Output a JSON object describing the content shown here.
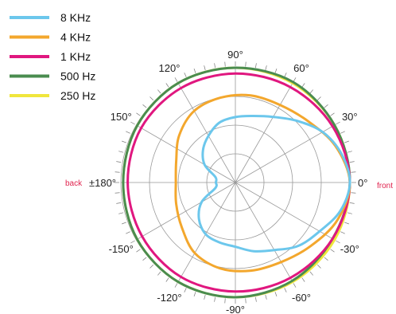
{
  "chart_data": {
    "type": "polar-line",
    "title": "",
    "r_range": [
      0,
      1
    ],
    "grid": true,
    "legend_position": "top-left",
    "angle_labels": [
      "0°",
      "30°",
      "60°",
      "90°",
      "120°",
      "150°",
      "±180°",
      "-150°",
      "-120°",
      "-90°",
      "-60°",
      "-30°"
    ],
    "annotations": {
      "front": "front",
      "back": "back"
    },
    "series": [
      {
        "name": "250 Hz",
        "color": "#f0e63c",
        "theta": [
          0,
          30,
          60,
          90,
          120,
          150,
          180,
          210,
          240,
          270,
          300,
          330
        ],
        "r": [
          1.0,
          1.0,
          1.0,
          1.0,
          1.0,
          0.99,
          0.98,
          0.99,
          1.0,
          1.0,
          1.0,
          1.0
        ]
      },
      {
        "name": "500 Hz",
        "color": "#4a8c4f",
        "theta": [
          0,
          30,
          60,
          90,
          120,
          150,
          180,
          210,
          240,
          270,
          300,
          330
        ],
        "r": [
          1.0,
          1.0,
          1.01,
          1.0,
          1.0,
          0.99,
          0.98,
          0.99,
          1.0,
          1.0,
          0.99,
          0.98
        ]
      },
      {
        "name": "1 KHz",
        "color": "#e0177f",
        "theta": [
          0,
          30,
          60,
          90,
          120,
          150,
          180,
          210,
          240,
          270,
          300,
          330
        ],
        "r": [
          1.0,
          0.98,
          0.96,
          0.95,
          0.95,
          0.95,
          0.94,
          0.94,
          0.95,
          0.95,
          0.96,
          0.98
        ]
      },
      {
        "name": "4 KHz",
        "color": "#f3a72d",
        "theta": [
          0,
          20,
          40,
          60,
          80,
          100,
          120,
          140,
          160,
          180,
          200,
          220,
          240,
          260,
          280,
          300,
          320,
          340
        ],
        "r": [
          1.0,
          0.93,
          0.83,
          0.78,
          0.77,
          0.75,
          0.72,
          0.64,
          0.55,
          0.52,
          0.55,
          0.61,
          0.71,
          0.76,
          0.78,
          0.8,
          0.86,
          0.95
        ]
      },
      {
        "name": "8 KHz",
        "color": "#6cc7ec",
        "theta": [
          0,
          15,
          30,
          45,
          60,
          75,
          90,
          105,
          120,
          135,
          150,
          165,
          180,
          195,
          210,
          225,
          240,
          255,
          270,
          285,
          300,
          315,
          330,
          345
        ],
        "r": [
          1.0,
          0.96,
          0.88,
          0.76,
          0.66,
          0.6,
          0.57,
          0.54,
          0.47,
          0.4,
          0.31,
          0.18,
          0.17,
          0.18,
          0.34,
          0.45,
          0.52,
          0.54,
          0.56,
          0.62,
          0.68,
          0.78,
          0.85,
          0.95
        ]
      }
    ]
  }
}
